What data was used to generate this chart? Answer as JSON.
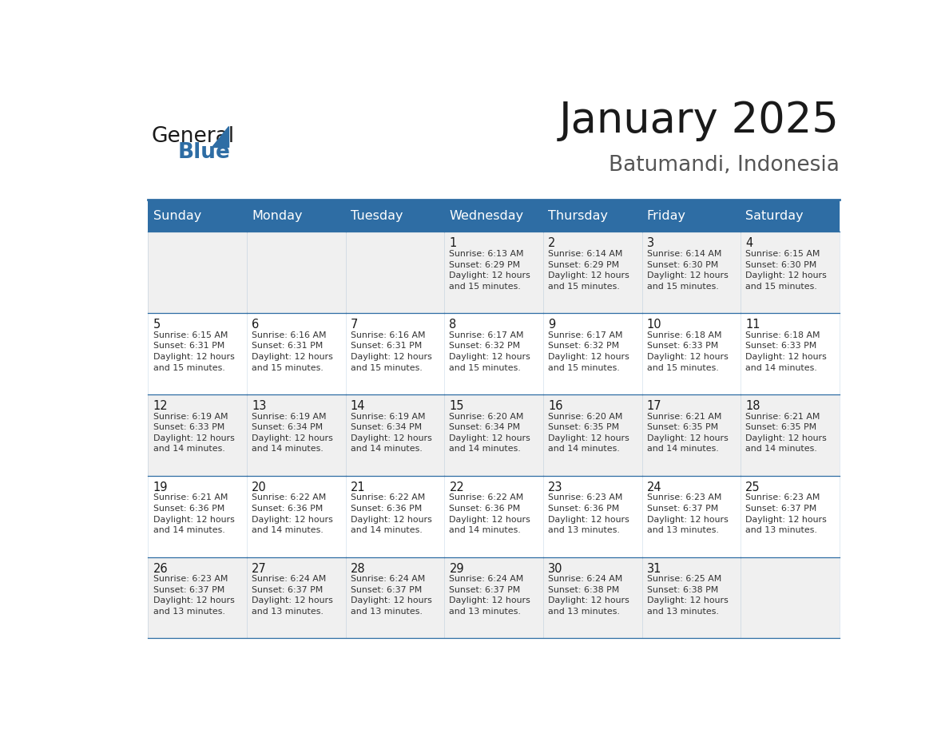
{
  "title": "January 2025",
  "subtitle": "Batumandi, Indonesia",
  "days_of_week": [
    "Sunday",
    "Monday",
    "Tuesday",
    "Wednesday",
    "Thursday",
    "Friday",
    "Saturday"
  ],
  "header_bg": "#2E6DA4",
  "header_text_color": "#FFFFFF",
  "cell_bg_light": "#F0F0F0",
  "cell_bg_white": "#FFFFFF",
  "border_color": "#2E6DA4",
  "text_color": "#333333",
  "calendar_data": [
    [
      {
        "day": null,
        "info": null
      },
      {
        "day": null,
        "info": null
      },
      {
        "day": null,
        "info": null
      },
      {
        "day": 1,
        "info": "Sunrise: 6:13 AM\nSunset: 6:29 PM\nDaylight: 12 hours\nand 15 minutes."
      },
      {
        "day": 2,
        "info": "Sunrise: 6:14 AM\nSunset: 6:29 PM\nDaylight: 12 hours\nand 15 minutes."
      },
      {
        "day": 3,
        "info": "Sunrise: 6:14 AM\nSunset: 6:30 PM\nDaylight: 12 hours\nand 15 minutes."
      },
      {
        "day": 4,
        "info": "Sunrise: 6:15 AM\nSunset: 6:30 PM\nDaylight: 12 hours\nand 15 minutes."
      }
    ],
    [
      {
        "day": 5,
        "info": "Sunrise: 6:15 AM\nSunset: 6:31 PM\nDaylight: 12 hours\nand 15 minutes."
      },
      {
        "day": 6,
        "info": "Sunrise: 6:16 AM\nSunset: 6:31 PM\nDaylight: 12 hours\nand 15 minutes."
      },
      {
        "day": 7,
        "info": "Sunrise: 6:16 AM\nSunset: 6:31 PM\nDaylight: 12 hours\nand 15 minutes."
      },
      {
        "day": 8,
        "info": "Sunrise: 6:17 AM\nSunset: 6:32 PM\nDaylight: 12 hours\nand 15 minutes."
      },
      {
        "day": 9,
        "info": "Sunrise: 6:17 AM\nSunset: 6:32 PM\nDaylight: 12 hours\nand 15 minutes."
      },
      {
        "day": 10,
        "info": "Sunrise: 6:18 AM\nSunset: 6:33 PM\nDaylight: 12 hours\nand 15 minutes."
      },
      {
        "day": 11,
        "info": "Sunrise: 6:18 AM\nSunset: 6:33 PM\nDaylight: 12 hours\nand 14 minutes."
      }
    ],
    [
      {
        "day": 12,
        "info": "Sunrise: 6:19 AM\nSunset: 6:33 PM\nDaylight: 12 hours\nand 14 minutes."
      },
      {
        "day": 13,
        "info": "Sunrise: 6:19 AM\nSunset: 6:34 PM\nDaylight: 12 hours\nand 14 minutes."
      },
      {
        "day": 14,
        "info": "Sunrise: 6:19 AM\nSunset: 6:34 PM\nDaylight: 12 hours\nand 14 minutes."
      },
      {
        "day": 15,
        "info": "Sunrise: 6:20 AM\nSunset: 6:34 PM\nDaylight: 12 hours\nand 14 minutes."
      },
      {
        "day": 16,
        "info": "Sunrise: 6:20 AM\nSunset: 6:35 PM\nDaylight: 12 hours\nand 14 minutes."
      },
      {
        "day": 17,
        "info": "Sunrise: 6:21 AM\nSunset: 6:35 PM\nDaylight: 12 hours\nand 14 minutes."
      },
      {
        "day": 18,
        "info": "Sunrise: 6:21 AM\nSunset: 6:35 PM\nDaylight: 12 hours\nand 14 minutes."
      }
    ],
    [
      {
        "day": 19,
        "info": "Sunrise: 6:21 AM\nSunset: 6:36 PM\nDaylight: 12 hours\nand 14 minutes."
      },
      {
        "day": 20,
        "info": "Sunrise: 6:22 AM\nSunset: 6:36 PM\nDaylight: 12 hours\nand 14 minutes."
      },
      {
        "day": 21,
        "info": "Sunrise: 6:22 AM\nSunset: 6:36 PM\nDaylight: 12 hours\nand 14 minutes."
      },
      {
        "day": 22,
        "info": "Sunrise: 6:22 AM\nSunset: 6:36 PM\nDaylight: 12 hours\nand 14 minutes."
      },
      {
        "day": 23,
        "info": "Sunrise: 6:23 AM\nSunset: 6:36 PM\nDaylight: 12 hours\nand 13 minutes."
      },
      {
        "day": 24,
        "info": "Sunrise: 6:23 AM\nSunset: 6:37 PM\nDaylight: 12 hours\nand 13 minutes."
      },
      {
        "day": 25,
        "info": "Sunrise: 6:23 AM\nSunset: 6:37 PM\nDaylight: 12 hours\nand 13 minutes."
      }
    ],
    [
      {
        "day": 26,
        "info": "Sunrise: 6:23 AM\nSunset: 6:37 PM\nDaylight: 12 hours\nand 13 minutes."
      },
      {
        "day": 27,
        "info": "Sunrise: 6:24 AM\nSunset: 6:37 PM\nDaylight: 12 hours\nand 13 minutes."
      },
      {
        "day": 28,
        "info": "Sunrise: 6:24 AM\nSunset: 6:37 PM\nDaylight: 12 hours\nand 13 minutes."
      },
      {
        "day": 29,
        "info": "Sunrise: 6:24 AM\nSunset: 6:37 PM\nDaylight: 12 hours\nand 13 minutes."
      },
      {
        "day": 30,
        "info": "Sunrise: 6:24 AM\nSunset: 6:38 PM\nDaylight: 12 hours\nand 13 minutes."
      },
      {
        "day": 31,
        "info": "Sunrise: 6:25 AM\nSunset: 6:38 PM\nDaylight: 12 hours\nand 13 minutes."
      },
      {
        "day": null,
        "info": null
      }
    ]
  ]
}
